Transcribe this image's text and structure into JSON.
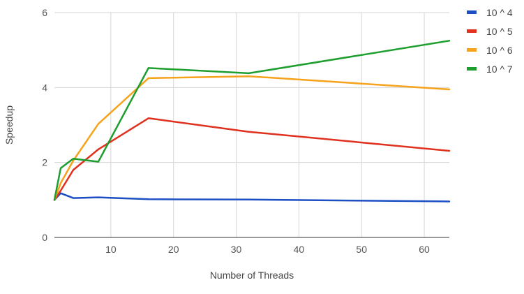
{
  "chart_data": {
    "type": "line",
    "title": "",
    "xlabel": "Number of Threads",
    "ylabel": "Speedup",
    "xlim": [
      1,
      64
    ],
    "ylim": [
      0,
      6
    ],
    "x_ticks": [
      10,
      20,
      30,
      40,
      50,
      60
    ],
    "y_ticks": [
      0,
      2,
      4,
      6
    ],
    "grid": true,
    "legend_position": "top-right",
    "x": [
      1,
      2,
      4,
      8,
      16,
      32,
      64
    ],
    "series": [
      {
        "name": "10 ^ 4",
        "color": "#1c4fc4",
        "values": [
          1.0,
          1.18,
          1.05,
          1.07,
          1.02,
          1.01,
          0.96
        ]
      },
      {
        "name": "10 ^ 5",
        "color": "#e0301e",
        "values": [
          1.0,
          1.25,
          1.8,
          2.35,
          3.18,
          2.82,
          2.31
        ]
      },
      {
        "name": "10 ^ 6",
        "color": "#f7a21b",
        "values": [
          1.0,
          1.45,
          2.05,
          3.03,
          4.25,
          4.3,
          3.95
        ]
      },
      {
        "name": "10 ^ 7",
        "color": "#1e9e2f",
        "values": [
          1.0,
          1.85,
          2.1,
          2.02,
          4.52,
          4.38,
          5.25
        ]
      }
    ]
  }
}
